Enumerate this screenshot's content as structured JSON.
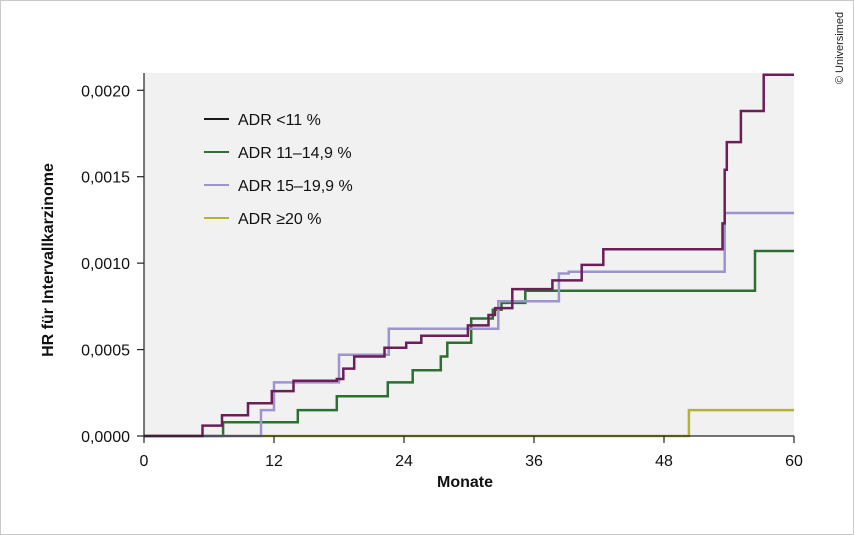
{
  "chart_data": {
    "type": "line",
    "step": true,
    "xlabel": "Monate",
    "ylabel": "HR für Intervallkarzinome",
    "xlim": [
      0,
      60
    ],
    "ylim": [
      0,
      0.0021
    ],
    "x_ticks": [
      0,
      12,
      24,
      36,
      48,
      60
    ],
    "x_tick_labels": [
      "0",
      "12",
      "24",
      "36",
      "48",
      "60"
    ],
    "y_ticks": [
      0,
      0.0005,
      0.001,
      0.0015,
      0.002
    ],
    "y_tick_labels": [
      "0,0000",
      "0,0005",
      "0,0010",
      "0,0015",
      "0,0020"
    ],
    "grid": false,
    "legend_position": "top-left",
    "plot_background": "#f1f1f1",
    "series": [
      {
        "name": "ADR <11 %",
        "color": "#6b1e58",
        "line_color": "#6b1e58",
        "legend_color": "#1a1a1a",
        "x": [
          0,
          5.4,
          7.2,
          9.6,
          11.8,
          13.8,
          17.8,
          18.4,
          19.4,
          22.2,
          24.2,
          25.6,
          27.4,
          29.9,
          30.6,
          31.8,
          32.4,
          34.0,
          37.7,
          38.4,
          40.4,
          42.4,
          53.4,
          53.6,
          53.8,
          55.1,
          57.2,
          60
        ],
        "y": [
          0,
          6e-05,
          0.00012,
          0.00019,
          0.00026,
          0.00032,
          0.00033,
          0.00039,
          0.00046,
          0.00051,
          0.00054,
          0.00058,
          0.00058,
          0.00064,
          0.00064,
          0.0007,
          0.00074,
          0.00085,
          0.0009,
          0.0009,
          0.00099,
          0.00108,
          0.00123,
          0.00154,
          0.0017,
          0.00188,
          0.00209,
          0.00209
        ]
      },
      {
        "name": "ADR 11–14,9 %",
        "color": "#2d6e33",
        "x": [
          0,
          7.3,
          14.2,
          17.8,
          22.5,
          24.8,
          26.8,
          27.4,
          28.0,
          30.2,
          32.2,
          33.0,
          35.2,
          56.4,
          60
        ],
        "y": [
          0,
          8e-05,
          0.00015,
          0.00023,
          0.00031,
          0.00038,
          0.00038,
          0.00046,
          0.00054,
          0.00068,
          0.00073,
          0.00077,
          0.00084,
          0.00107,
          0.00107
        ]
      },
      {
        "name": "ADR 15–19,9 %",
        "color": "#9c94cc",
        "x": [
          0,
          10.8,
          12.0,
          18.0,
          22.6,
          30.1,
          32.7,
          38.3,
          39.2,
          53.6,
          60
        ],
        "y": [
          0,
          0.00015,
          0.00031,
          0.00047,
          0.00062,
          0.00062,
          0.00078,
          0.00094,
          0.00095,
          0.00129,
          0.00129
        ]
      },
      {
        "name": "ADR ≥20 %",
        "color": "#b5b13a",
        "x": [
          0,
          50.3,
          60
        ],
        "y": [
          0,
          0.00015,
          0.00015
        ]
      }
    ]
  },
  "copyright": "© Universimed"
}
